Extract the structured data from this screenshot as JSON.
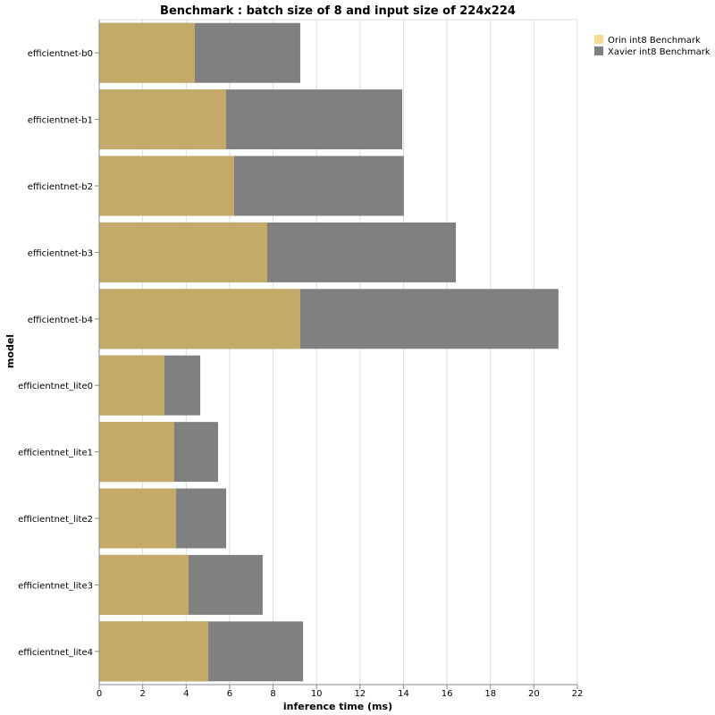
{
  "chart_data": {
    "type": "bar",
    "orientation": "horizontal",
    "title": "Benchmark : batch size of 8 and input size of 224x224",
    "xlabel": "inference time (ms)",
    "ylabel": "model",
    "xlim": [
      0,
      22
    ],
    "xticks": [
      0,
      2,
      4,
      6,
      8,
      10,
      12,
      14,
      16,
      18,
      20,
      22
    ],
    "grid": true,
    "legend_placement": "top-right",
    "categories": [
      "efficientnet-b0",
      "efficientnet-b1",
      "efficientnet-b2",
      "efficientnet-b3",
      "efficientnet-b4",
      "efficientnet_lite0",
      "efficientnet_lite1",
      "efficientnet_lite2",
      "efficientnet_lite3",
      "efficientnet_lite4"
    ],
    "series": [
      {
        "name": "Orin int8 Benchmark",
        "color": "#fbd88f",
        "bar_color": "#c4aa68",
        "values": [
          4.4,
          5.84,
          6.21,
          7.73,
          9.25,
          3.0,
          3.45,
          3.54,
          4.11,
          5.02
        ]
      },
      {
        "name": "Xavier int8 Benchmark",
        "color": "#7f7f7f",
        "bar_color": "#808080",
        "values": [
          9.25,
          13.94,
          14.02,
          16.41,
          21.13,
          4.65,
          5.47,
          5.84,
          7.52,
          9.38
        ]
      }
    ]
  }
}
